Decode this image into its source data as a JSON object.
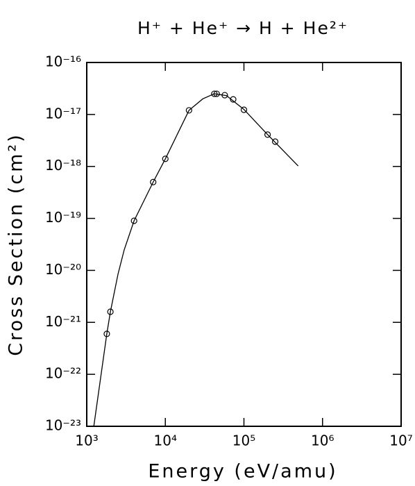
{
  "chart_data": {
    "type": "scatter",
    "title": "H⁺ + He⁺ → H + He²⁺",
    "x_label": "Energy (eV/amu)",
    "y_label": "Cross Section (cm²)",
    "x_scale": "log",
    "y_scale": "log",
    "xlim": [
      1000,
      10000000
    ],
    "ylim": [
      1e-23,
      1e-16
    ],
    "xticks": [
      {
        "value": 1000,
        "label": "10³"
      },
      {
        "value": 10000,
        "label": "10⁴"
      },
      {
        "value": 100000,
        "label": "10⁵"
      },
      {
        "value": 1000000,
        "label": "10⁶"
      },
      {
        "value": 10000000,
        "label": "10⁷"
      }
    ],
    "yticks": [
      {
        "value": 1e-23,
        "label": "10⁻²³"
      },
      {
        "value": 1e-22,
        "label": "10⁻²²"
      },
      {
        "value": 1e-21,
        "label": "10⁻²¹"
      },
      {
        "value": 1e-20,
        "label": "10⁻²⁰"
      },
      {
        "value": 1e-19,
        "label": "10⁻¹⁹"
      },
      {
        "value": 1e-18,
        "label": "10⁻¹⁸"
      },
      {
        "value": 1e-17,
        "label": "10⁻¹⁷"
      },
      {
        "value": 1e-16,
        "label": "10⁻¹⁶"
      }
    ],
    "grid": false,
    "series": [
      {
        "mode": "markers",
        "color": "#000000",
        "x": [
          1800,
          2000,
          4000,
          7000,
          10000,
          20000,
          42000,
          45000,
          57000,
          73000,
          100000,
          200000,
          250000
        ],
        "values": [
          6e-22,
          1.6e-21,
          9e-20,
          5e-19,
          1.4e-18,
          1.2e-17,
          2.5e-17,
          2.5e-17,
          2.35e-17,
          1.95e-17,
          1.23e-17,
          4.1e-18,
          3e-18
        ]
      },
      {
        "mode": "line",
        "color": "#000000",
        "x": [
          1230,
          1800,
          2000,
          2500,
          3000,
          4000,
          7000,
          10000,
          20000,
          30000,
          42000,
          60000,
          100000,
          200000,
          490000
        ],
        "values": [
          1e-23,
          6e-22,
          1.6e-21,
          8.5e-21,
          2.5e-20,
          9e-20,
          5e-19,
          1.4e-18,
          1.2e-17,
          2e-17,
          2.5e-17,
          2.3e-17,
          1.25e-17,
          4.1e-18,
          1.02e-18
        ]
      }
    ]
  }
}
